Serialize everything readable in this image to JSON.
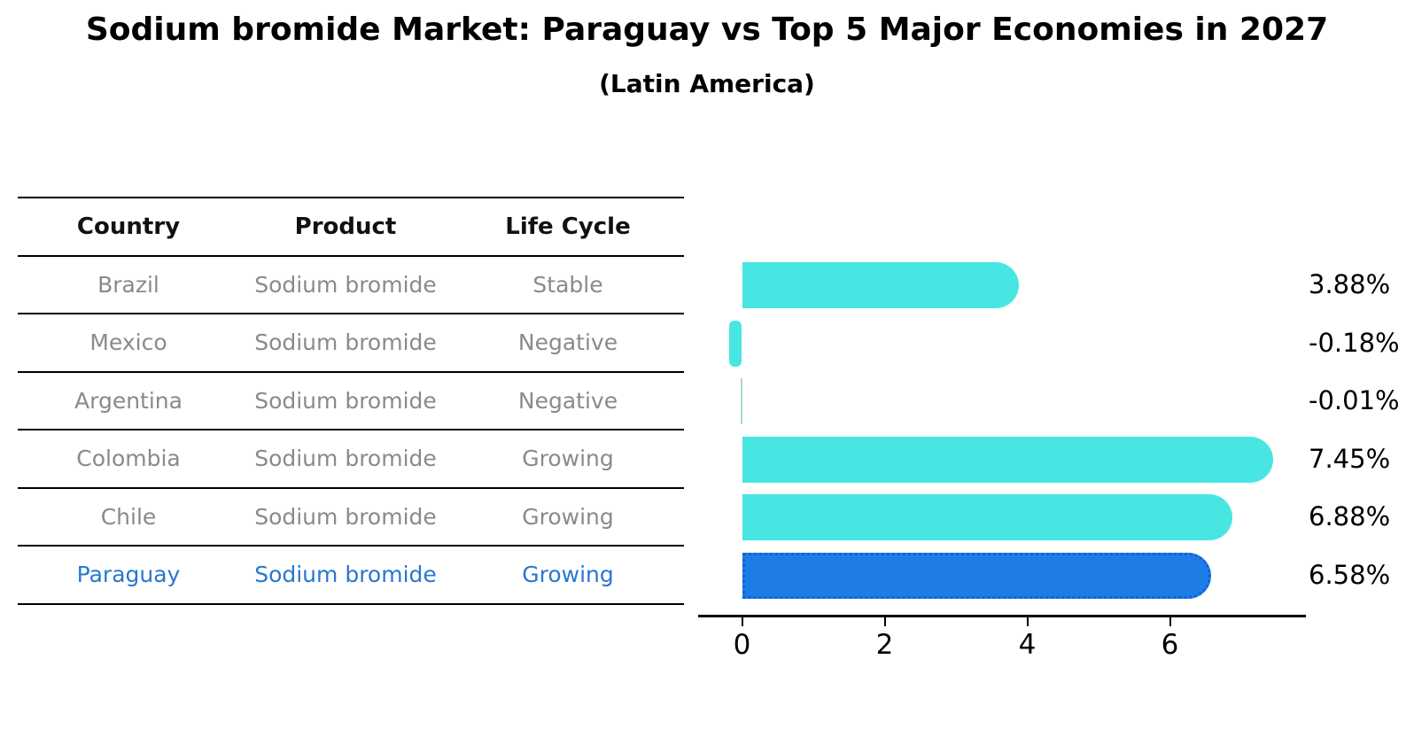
{
  "title": "Sodium bromide Market: Paraguay vs Top 5 Major Economies in 2027",
  "subtitle": "(Latin America)",
  "table": {
    "headers": [
      "Country",
      "Product",
      "Life Cycle"
    ],
    "rows": [
      {
        "country": "Brazil",
        "product": "Sodium bromide",
        "life_cycle": "Stable",
        "highlight": false
      },
      {
        "country": "Mexico",
        "product": "Sodium bromide",
        "life_cycle": "Negative",
        "highlight": false
      },
      {
        "country": "Argentina",
        "product": "Sodium bromide",
        "life_cycle": "Negative",
        "highlight": false
      },
      {
        "country": "Colombia",
        "product": "Sodium bromide",
        "life_cycle": "Growing",
        "highlight": false
      },
      {
        "country": "Chile",
        "product": "Sodium bromide",
        "life_cycle": "Growing",
        "highlight": false
      },
      {
        "country": "Paraguay",
        "product": "Sodium bromide",
        "life_cycle": "Growing",
        "highlight": true
      }
    ]
  },
  "chart_data": {
    "type": "bar",
    "orientation": "horizontal",
    "title": "Sodium bromide Market: Paraguay vs Top 5 Major Economies in 2027",
    "subtitle": "(Latin America)",
    "categories": [
      "Brazil",
      "Mexico",
      "Argentina",
      "Colombia",
      "Chile",
      "Paraguay"
    ],
    "values": [
      3.88,
      -0.18,
      -0.01,
      7.45,
      6.88,
      6.58
    ],
    "value_labels": [
      "3.88%",
      "-0.18%",
      "-0.01%",
      "7.45%",
      "6.88%",
      "6.58%"
    ],
    "xticks": [
      0,
      2,
      4,
      6
    ],
    "xlim": [
      -0.6,
      7.9
    ],
    "grid": false,
    "legend": false,
    "value_label_position": "right",
    "highlight_index": 5,
    "colors": {
      "bar": "#48e6e2",
      "near_zero_bar": "#a9d8d6",
      "highlight_bar": "#1e7ce6",
      "highlight_bar_border": "#0e63d9",
      "axis": "#000000",
      "value_label": "#000000",
      "table_header_text": "#111111",
      "table_cell_text": "#8a8a8a",
      "highlight_text": "#2878ce"
    }
  }
}
